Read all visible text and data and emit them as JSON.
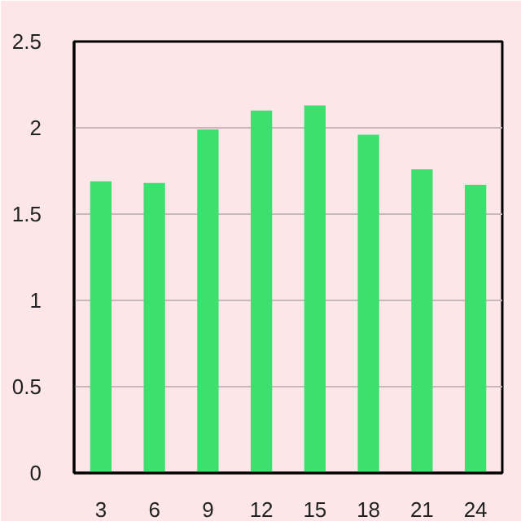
{
  "chart_data": {
    "type": "bar",
    "categories": [
      "3",
      "6",
      "9",
      "12",
      "15",
      "18",
      "21",
      "24"
    ],
    "values": [
      1.69,
      1.68,
      1.99,
      2.1,
      2.13,
      1.96,
      1.76,
      1.67
    ],
    "color": "#3ddf6e",
    "ylim": [
      0,
      2.5
    ],
    "yticks": [
      0,
      0.5,
      1,
      1.5,
      2,
      2.5
    ],
    "grid": "y"
  }
}
